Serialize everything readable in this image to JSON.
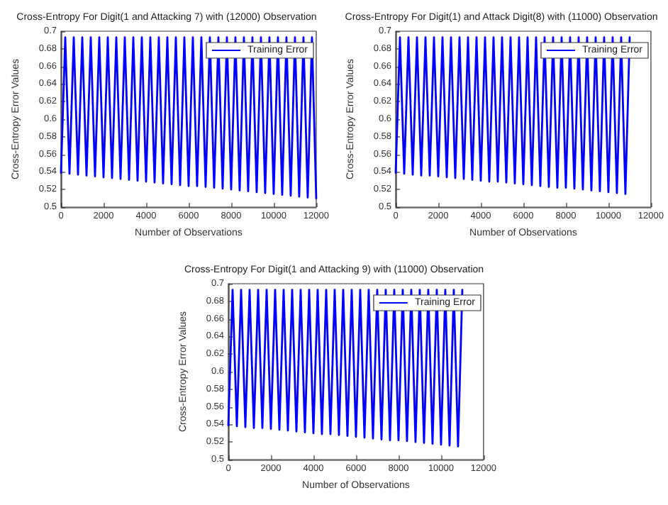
{
  "chart_data": [
    {
      "type": "line",
      "title": "Cross-Entropy For Digit(1 and Attacking 7) with (12000) Observation",
      "xlabel": "Number of Observations",
      "ylabel": "Cross-Entropy Error Values",
      "legend": "top right",
      "grid": false,
      "marker": "none",
      "line_style": "solid",
      "xlim": [
        0,
        12000
      ],
      "xticks": [
        0,
        2000,
        4000,
        6000,
        8000,
        10000,
        12000
      ],
      "ylim": [
        0.5,
        0.7
      ],
      "yticks": [
        0.5,
        0.52,
        0.54,
        0.56,
        0.58,
        0.6,
        0.62,
        0.64,
        0.66,
        0.68,
        0.7
      ],
      "series": [
        {
          "name": "Training Error",
          "color": "#0000ff",
          "x": [
            0,
            200,
            400,
            600,
            800,
            1000,
            1200,
            1400,
            1600,
            1800,
            2000,
            2200,
            2400,
            2600,
            2800,
            3000,
            3200,
            3400,
            3600,
            3800,
            4000,
            4200,
            4400,
            4600,
            4800,
            5000,
            5200,
            5400,
            5600,
            5800,
            6000,
            6200,
            6400,
            6600,
            6800,
            7000,
            7200,
            7400,
            7600,
            7800,
            8000,
            8200,
            8400,
            8600,
            8800,
            9000,
            9200,
            9400,
            9600,
            9800,
            10000,
            10200,
            10400,
            10600,
            10800,
            11000,
            11200,
            11400,
            11600,
            11800,
            12000
          ],
          "values": [
            0.539,
            0.693,
            0.538,
            0.693,
            0.537,
            0.693,
            0.536,
            0.693,
            0.535,
            0.693,
            0.534,
            0.693,
            0.533,
            0.693,
            0.532,
            0.693,
            0.531,
            0.693,
            0.53,
            0.693,
            0.529,
            0.693,
            0.528,
            0.693,
            0.527,
            0.693,
            0.526,
            0.693,
            0.525,
            0.693,
            0.524,
            0.693,
            0.524,
            0.693,
            0.523,
            0.693,
            0.522,
            0.693,
            0.521,
            0.693,
            0.52,
            0.693,
            0.519,
            0.693,
            0.518,
            0.693,
            0.517,
            0.693,
            0.516,
            0.693,
            0.515,
            0.693,
            0.514,
            0.693,
            0.513,
            0.693,
            0.512,
            0.693,
            0.511,
            0.693,
            0.51
          ]
        }
      ]
    },
    {
      "type": "line",
      "title": "Cross-Entropy For Digit(1) and Attack Digit(8) with (11000) Observation",
      "xlabel": "Number of Observations",
      "ylabel": "Cross-Entropy Error Values",
      "legend": "top right",
      "grid": false,
      "marker": "none",
      "line_style": "solid",
      "xlim": [
        0,
        12000
      ],
      "xticks": [
        0,
        2000,
        4000,
        6000,
        8000,
        10000,
        12000
      ],
      "ylim": [
        0.5,
        0.7
      ],
      "yticks": [
        0.5,
        0.52,
        0.54,
        0.56,
        0.58,
        0.6,
        0.62,
        0.64,
        0.66,
        0.68,
        0.7
      ],
      "series": [
        {
          "name": "Training Error",
          "color": "#0000ff",
          "x": [
            0,
            200,
            400,
            600,
            800,
            1000,
            1200,
            1400,
            1600,
            1800,
            2000,
            2200,
            2400,
            2600,
            2800,
            3000,
            3200,
            3400,
            3600,
            3800,
            4000,
            4200,
            4400,
            4600,
            4800,
            5000,
            5200,
            5400,
            5600,
            5800,
            6000,
            6200,
            6400,
            6600,
            6800,
            7000,
            7200,
            7400,
            7600,
            7800,
            8000,
            8200,
            8400,
            8600,
            8800,
            9000,
            9200,
            9400,
            9600,
            9800,
            10000,
            10200,
            10400,
            10600,
            10800,
            11000
          ],
          "values": [
            0.539,
            0.693,
            0.538,
            0.693,
            0.537,
            0.693,
            0.536,
            0.693,
            0.536,
            0.693,
            0.535,
            0.693,
            0.534,
            0.693,
            0.533,
            0.693,
            0.532,
            0.693,
            0.531,
            0.693,
            0.53,
            0.693,
            0.529,
            0.693,
            0.529,
            0.693,
            0.528,
            0.693,
            0.527,
            0.693,
            0.526,
            0.693,
            0.525,
            0.693,
            0.524,
            0.693,
            0.523,
            0.693,
            0.522,
            0.693,
            0.522,
            0.693,
            0.521,
            0.693,
            0.52,
            0.693,
            0.519,
            0.693,
            0.518,
            0.693,
            0.517,
            0.693,
            0.516,
            0.693,
            0.515,
            0.693
          ]
        }
      ]
    },
    {
      "type": "line",
      "title": "Cross-Entropy For Digit(1 and Attacking 9) with (11000) Observation",
      "xlabel": "Number of Observations",
      "ylabel": "Cross-Entropy Error Values",
      "legend": "top right",
      "grid": false,
      "marker": "none",
      "line_style": "solid",
      "xlim": [
        0,
        12000
      ],
      "xticks": [
        0,
        2000,
        4000,
        6000,
        8000,
        10000,
        12000
      ],
      "ylim": [
        0.5,
        0.7
      ],
      "yticks": [
        0.5,
        0.52,
        0.54,
        0.56,
        0.58,
        0.6,
        0.62,
        0.64,
        0.66,
        0.68,
        0.7
      ],
      "series": [
        {
          "name": "Training Error",
          "color": "#0000ff",
          "x": [
            0,
            200,
            400,
            600,
            800,
            1000,
            1200,
            1400,
            1600,
            1800,
            2000,
            2200,
            2400,
            2600,
            2800,
            3000,
            3200,
            3400,
            3600,
            3800,
            4000,
            4200,
            4400,
            4600,
            4800,
            5000,
            5200,
            5400,
            5600,
            5800,
            6000,
            6200,
            6400,
            6600,
            6800,
            7000,
            7200,
            7400,
            7600,
            7800,
            8000,
            8200,
            8400,
            8600,
            8800,
            9000,
            9200,
            9400,
            9600,
            9800,
            10000,
            10200,
            10400,
            10600,
            10800,
            11000
          ],
          "values": [
            0.539,
            0.693,
            0.538,
            0.693,
            0.537,
            0.693,
            0.536,
            0.693,
            0.536,
            0.693,
            0.535,
            0.693,
            0.534,
            0.693,
            0.533,
            0.693,
            0.532,
            0.693,
            0.531,
            0.693,
            0.53,
            0.693,
            0.529,
            0.693,
            0.529,
            0.693,
            0.528,
            0.693,
            0.527,
            0.693,
            0.526,
            0.693,
            0.525,
            0.693,
            0.524,
            0.693,
            0.523,
            0.693,
            0.522,
            0.693,
            0.522,
            0.693,
            0.521,
            0.693,
            0.52,
            0.693,
            0.519,
            0.693,
            0.518,
            0.693,
            0.517,
            0.693,
            0.516,
            0.693,
            0.515,
            0.693
          ]
        }
      ]
    }
  ]
}
